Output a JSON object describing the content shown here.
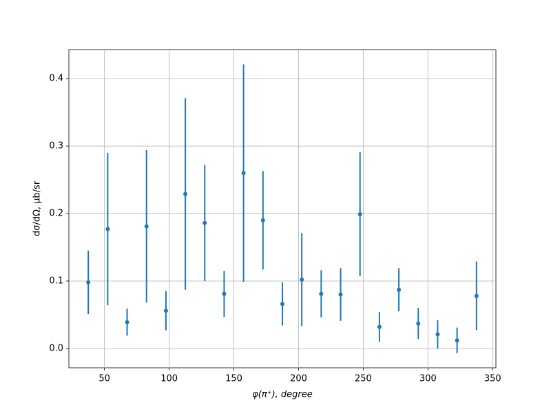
{
  "chart_data": {
    "type": "errorbar",
    "x_label": "φ(π⁺), degree",
    "y_label": "dσ/dΩ, μb/sr",
    "x": [
      37.5,
      52.5,
      67.5,
      82.5,
      97.5,
      112.5,
      127.5,
      142.5,
      157.5,
      172.5,
      187.5,
      202.5,
      217.5,
      232.5,
      247.5,
      262.5,
      277.5,
      292.5,
      307.5,
      322.5,
      337.5
    ],
    "values": [
      0.098,
      0.177,
      0.039,
      0.181,
      0.056,
      0.229,
      0.186,
      0.081,
      0.26,
      0.19,
      0.066,
      0.102,
      0.081,
      0.08,
      0.199,
      0.032,
      0.087,
      0.037,
      0.021,
      0.012,
      0.078
    ],
    "errors": [
      0.047,
      0.113,
      0.02,
      0.113,
      0.029,
      0.142,
      0.086,
      0.034,
      0.161,
      0.073,
      0.032,
      0.069,
      0.035,
      0.039,
      0.092,
      0.022,
      0.032,
      0.023,
      0.021,
      0.019,
      0.051
    ],
    "color": "#1f77b4",
    "xlim": [
      22.5,
      352.5
    ],
    "ylim": [
      -0.0286,
      0.443
    ],
    "xticks": [
      50,
      100,
      150,
      200,
      250,
      300,
      350
    ],
    "yticks": [
      {
        "value": 0,
        "label": "0.0"
      },
      0.1,
      0.2,
      0.3,
      0.4
    ],
    "grid": true
  }
}
